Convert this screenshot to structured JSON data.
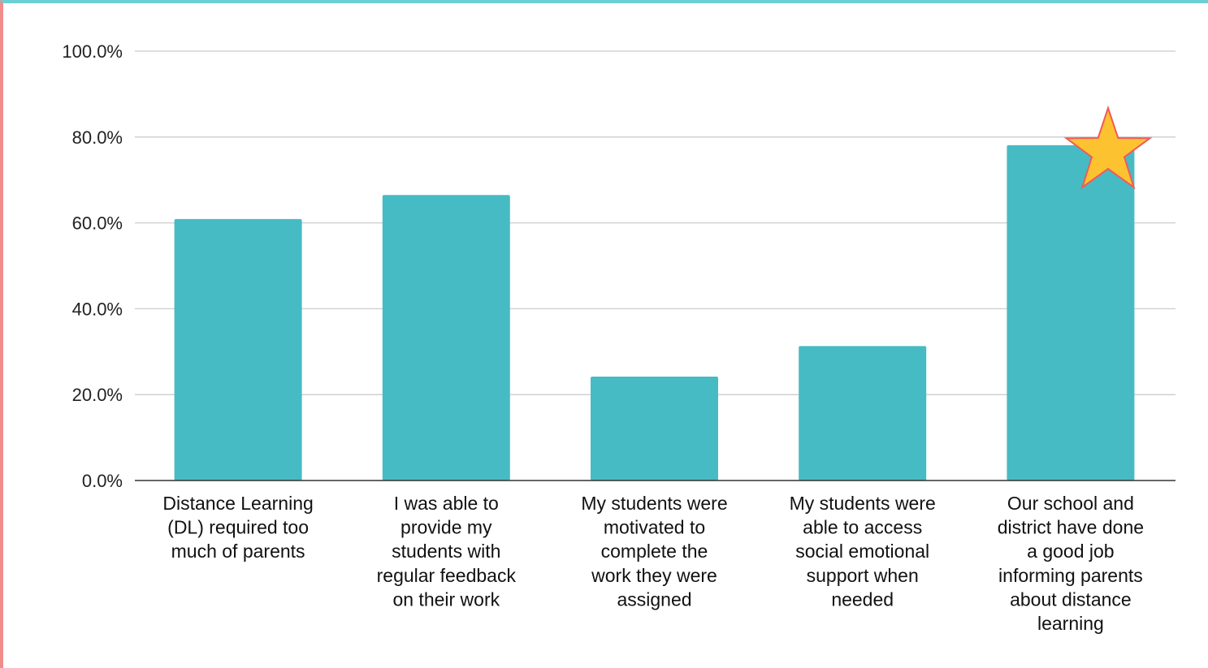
{
  "chart_data": {
    "type": "bar",
    "title": "",
    "xlabel": "",
    "ylabel": "",
    "ylim": [
      0,
      100
    ],
    "yticks": [
      "0.0%",
      "20.0%",
      "40.0%",
      "60.0%",
      "80.0%",
      "100.0%"
    ],
    "grid": true,
    "legend": "none",
    "categories": [
      [
        "Distance Learning",
        "(DL) required too",
        "much of parents"
      ],
      [
        "I was able to",
        "provide my",
        "students with",
        "regular feedback",
        "on their work"
      ],
      [
        "My students were",
        "motivated to",
        "complete the",
        "work they were",
        "assigned"
      ],
      [
        "My students were",
        "able to access",
        "social emotional",
        "support when",
        "needed"
      ],
      [
        "Our school and",
        "district have done",
        "a good job",
        "informing parents",
        "about distance",
        "learning"
      ]
    ],
    "values": [
      60.9,
      66.5,
      24.2,
      31.3,
      78.1
    ],
    "highlight": {
      "index": 4,
      "icon": "star-icon"
    },
    "colors": {
      "bar": "#46bbc4",
      "grid": "#cccccc",
      "axis": "#333333",
      "star_fill": "#fdc230",
      "star_stroke": "#f05a5a",
      "frame_top": "#6ccfd3",
      "frame_left": "#f08c8c"
    }
  }
}
